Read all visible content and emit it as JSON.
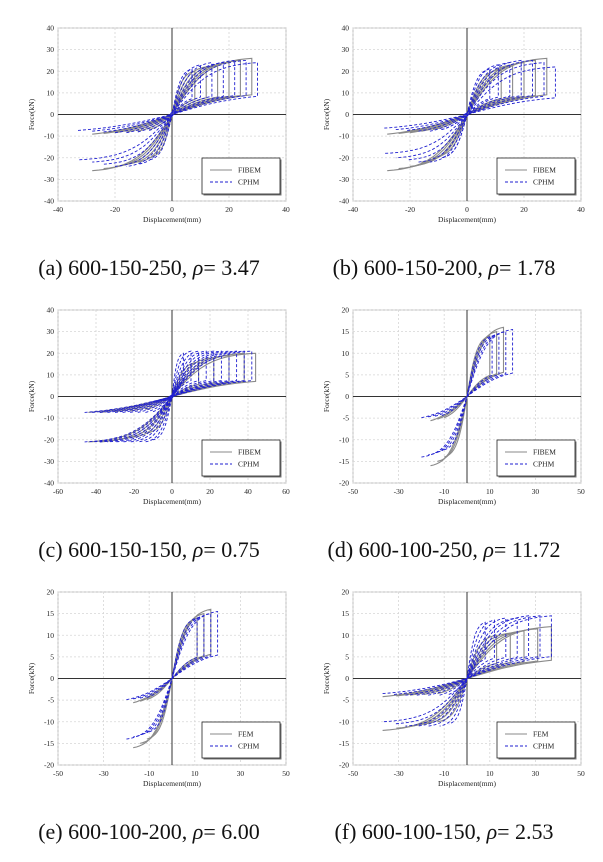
{
  "chart_data": [
    {
      "id": "a",
      "type": "line",
      "caption": {
        "prefix": "(a) 600-150-250, ",
        "symbol": "ρ",
        "suffix": "= 3.47"
      },
      "xlabel": "Displacement(mm)",
      "ylabel": "Force(kN)",
      "xlim": [
        -40,
        40
      ],
      "ylim": [
        -40,
        40
      ],
      "xticks": [
        -40,
        -20,
        0,
        20,
        40
      ],
      "yticks": [
        -40,
        -30,
        -20,
        -10,
        0,
        10,
        20,
        30,
        40
      ],
      "grid": true,
      "legend_position": "bottom-right",
      "series": [
        {
          "name": "FIBEM",
          "style": "solid",
          "color": "#8a8a8a",
          "cycles": [
            [
              28,
              26
            ],
            [
              24,
              25
            ],
            [
              20,
              24
            ],
            [
              16,
              23
            ],
            [
              12,
              22
            ],
            [
              8,
              20
            ]
          ],
          "neg_cycles": [
            [
              -28,
              -26
            ],
            [
              -24,
              -25
            ],
            [
              -20,
              -24
            ],
            [
              -16,
              -23
            ],
            [
              -12,
              -22
            ],
            [
              -8,
              -20
            ]
          ]
        },
        {
          "name": "CPHM",
          "style": "dashed",
          "color": "#1f1fd0",
          "cycles": [
            [
              30,
              24
            ],
            [
              26,
              25
            ],
            [
              22,
              25
            ],
            [
              18,
              24
            ],
            [
              14,
              24
            ],
            [
              10,
              23
            ],
            [
              7,
              21
            ]
          ],
          "neg_cycles": [
            [
              -33,
              -21
            ],
            [
              -28,
              -22
            ],
            [
              -24,
              -23
            ],
            [
              -20,
              -24
            ],
            [
              -16,
              -24
            ],
            [
              -12,
              -23
            ],
            [
              -8,
              -21
            ]
          ]
        }
      ]
    },
    {
      "id": "b",
      "type": "line",
      "caption": {
        "prefix": "(b) 600-150-200, ",
        "symbol": "ρ",
        "suffix": "= 1.78"
      },
      "xlabel": "Displacement(mm)",
      "ylabel": "Force(kN)",
      "xlim": [
        -40,
        40
      ],
      "ylim": [
        -40,
        40
      ],
      "xticks": [
        -40,
        -20,
        0,
        20,
        40
      ],
      "yticks": [
        -40,
        -30,
        -20,
        -10,
        0,
        10,
        20,
        30,
        40
      ],
      "grid": true,
      "legend_position": "bottom-right",
      "series": [
        {
          "name": "FIBEM",
          "style": "solid",
          "color": "#8a8a8a",
          "cycles": [
            [
              28,
              26
            ],
            [
              24,
              25
            ],
            [
              20,
              24
            ],
            [
              16,
              23
            ],
            [
              12,
              21
            ]
          ],
          "neg_cycles": [
            [
              -28,
              -26
            ],
            [
              -24,
              -25
            ],
            [
              -20,
              -24
            ],
            [
              -16,
              -22
            ],
            [
              -12,
              -20
            ]
          ]
        },
        {
          "name": "CPHM",
          "style": "dashed",
          "color": "#1f1fd0",
          "cycles": [
            [
              31,
              22
            ],
            [
              27,
              24
            ],
            [
              23,
              25
            ],
            [
              19,
              25
            ],
            [
              15,
              24
            ],
            [
              11,
              23
            ],
            [
              8,
              21
            ]
          ],
          "neg_cycles": [
            [
              -29,
              -18
            ],
            [
              -25,
              -20
            ],
            [
              -21,
              -21
            ],
            [
              -17,
              -22
            ],
            [
              -13,
              -22
            ],
            [
              -9,
              -20
            ]
          ]
        }
      ]
    },
    {
      "id": "c",
      "type": "line",
      "caption": {
        "prefix": "(c) 600-150-150, ",
        "symbol": "ρ",
        "suffix": "= 0.75"
      },
      "xlabel": "Displacement(mm)",
      "ylabel": "Force(kN)",
      "xlim": [
        -60,
        60
      ],
      "ylim": [
        -40,
        40
      ],
      "xticks": [
        -60,
        -40,
        -20,
        0,
        20,
        40,
        60
      ],
      "yticks": [
        -40,
        -30,
        -20,
        -10,
        0,
        10,
        20,
        30,
        40
      ],
      "grid": true,
      "legend_position": "bottom-right",
      "series": [
        {
          "name": "FIBEM",
          "style": "solid",
          "color": "#8a8a8a",
          "cycles": [
            [
              44,
              20
            ],
            [
              38,
              20
            ],
            [
              30,
              19
            ],
            [
              22,
              18
            ],
            [
              14,
              16
            ]
          ],
          "neg_cycles": [
            [
              -44,
              -21
            ],
            [
              -38,
              -21
            ],
            [
              -30,
              -20
            ],
            [
              -22,
              -19
            ],
            [
              -14,
              -17
            ]
          ]
        },
        {
          "name": "CPHM",
          "style": "dashed",
          "color": "#1f1fd0",
          "cycles": [
            [
              42,
              21
            ],
            [
              38,
              21
            ],
            [
              34,
              21
            ],
            [
              30,
              21
            ],
            [
              26,
              21
            ],
            [
              22,
              21
            ],
            [
              18,
              21
            ],
            [
              14,
              21
            ],
            [
              10,
              21
            ],
            [
              6,
              20
            ]
          ],
          "neg_cycles": [
            [
              -46,
              -21
            ],
            [
              -42,
              -21
            ],
            [
              -38,
              -21
            ],
            [
              -34,
              -21
            ],
            [
              -30,
              -21
            ],
            [
              -26,
              -21
            ],
            [
              -22,
              -21
            ],
            [
              -18,
              -21
            ],
            [
              -14,
              -21
            ],
            [
              -10,
              -20
            ]
          ]
        }
      ]
    },
    {
      "id": "d",
      "type": "line",
      "caption": {
        "prefix": "(d) 600-100-250, ",
        "symbol": "ρ",
        "suffix": "= 11.72"
      },
      "xlabel": "Displacement(mm)",
      "ylabel": "Force(kN)",
      "xlim": [
        -50,
        50
      ],
      "ylim": [
        -20,
        20
      ],
      "xticks": [
        -50,
        -30,
        -10,
        10,
        30,
        50
      ],
      "yticks": [
        -20,
        -15,
        -10,
        -5,
        0,
        5,
        10,
        15,
        20
      ],
      "grid": true,
      "legend_position": "bottom-right",
      "series": [
        {
          "name": "FIBEM",
          "style": "solid",
          "color": "#8a8a8a",
          "cycles": [
            [
              16,
              16
            ],
            [
              13,
              15
            ],
            [
              10,
              14
            ]
          ],
          "neg_cycles": [
            [
              -16,
              -16
            ],
            [
              -13,
              -15
            ],
            [
              -10,
              -14
            ]
          ]
        },
        {
          "name": "CPHM",
          "style": "dashed",
          "color": "#1f1fd0",
          "cycles": [
            [
              20,
              15.5
            ],
            [
              17,
              15
            ],
            [
              14,
              14.5
            ],
            [
              11,
              14
            ]
          ],
          "neg_cycles": [
            [
              -20,
              -14
            ],
            [
              -17,
              -13.5
            ],
            [
              -14,
              -13
            ],
            [
              -11,
              -12.5
            ]
          ]
        }
      ]
    },
    {
      "id": "e",
      "type": "line",
      "caption": {
        "prefix": "(e) 600-100-200, ",
        "symbol": "ρ",
        "suffix": "= 6.00"
      },
      "xlabel": "Displacement(mm)",
      "ylabel": "Force(kN)",
      "xlim": [
        -50,
        50
      ],
      "ylim": [
        -20,
        20
      ],
      "xticks": [
        -50,
        -30,
        -10,
        10,
        30,
        50
      ],
      "yticks": [
        -20,
        -15,
        -10,
        -5,
        0,
        5,
        10,
        15,
        20
      ],
      "grid": true,
      "legend_position": "bottom-right",
      "series": [
        {
          "name": "FEM",
          "style": "solid",
          "color": "#8a8a8a",
          "cycles": [
            [
              17,
              16
            ],
            [
              14,
              15
            ],
            [
              11,
              14
            ]
          ],
          "neg_cycles": [
            [
              -17,
              -16
            ],
            [
              -14,
              -15
            ],
            [
              -11,
              -14
            ]
          ]
        },
        {
          "name": "CPHM",
          "style": "dashed",
          "color": "#1f1fd0",
          "cycles": [
            [
              20,
              15.5
            ],
            [
              17,
              15
            ],
            [
              14,
              14.5
            ],
            [
              11,
              14
            ]
          ],
          "neg_cycles": [
            [
              -20,
              -14
            ],
            [
              -17,
              -13.5
            ],
            [
              -14,
              -13
            ],
            [
              -11,
              -12.5
            ]
          ]
        }
      ]
    },
    {
      "id": "f",
      "type": "line",
      "caption": {
        "prefix": "(f) 600-100-150, ",
        "symbol": "ρ",
        "suffix": "= 2.53"
      },
      "xlabel": "Displacement(mm)",
      "ylabel": "Force(kN)",
      "xlim": [
        -50,
        50
      ],
      "ylim": [
        -20,
        20
      ],
      "xticks": [
        -50,
        -30,
        -10,
        10,
        30,
        50
      ],
      "yticks": [
        -20,
        -15,
        -10,
        -5,
        0,
        5,
        10,
        15,
        20
      ],
      "grid": true,
      "legend_position": "bottom-right",
      "series": [
        {
          "name": "FEM",
          "style": "solid",
          "color": "#8a8a8a",
          "cycles": [
            [
              37,
              12
            ],
            [
              31,
              11.5
            ],
            [
              25,
              11
            ],
            [
              19,
              10.5
            ],
            [
              13,
              10
            ]
          ],
          "neg_cycles": [
            [
              -37,
              -12
            ],
            [
              -31,
              -11.5
            ],
            [
              -25,
              -11
            ],
            [
              -19,
              -10.5
            ],
            [
              -13,
              -10
            ]
          ]
        },
        {
          "name": "CPHM",
          "style": "dashed",
          "color": "#1f1fd0",
          "cycles": [
            [
              37,
              14.5
            ],
            [
              32,
              14.5
            ],
            [
              27,
              14.5
            ],
            [
              22,
              14
            ],
            [
              17,
              14
            ],
            [
              12,
              13.5
            ],
            [
              8,
              13
            ]
          ],
          "neg_cycles": [
            [
              -37,
              -10
            ],
            [
              -32,
              -10.5
            ],
            [
              -27,
              -11
            ],
            [
              -22,
              -11
            ],
            [
              -17,
              -11
            ],
            [
              -12,
              -11
            ],
            [
              -8,
              -10.5
            ]
          ]
        }
      ]
    }
  ]
}
